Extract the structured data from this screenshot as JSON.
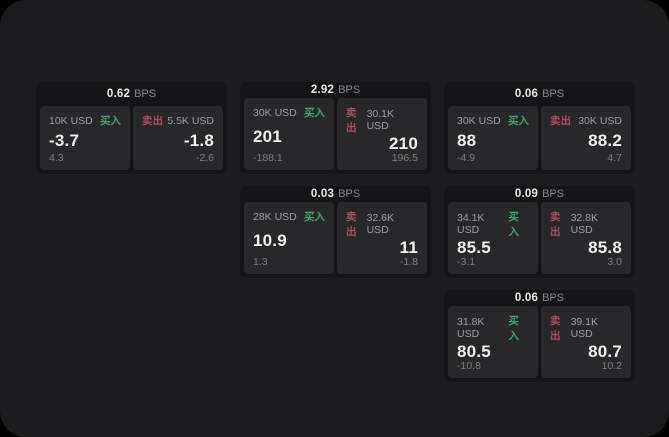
{
  "labels": {
    "bps_unit": "BPS",
    "buy": "买入",
    "sell": "卖出"
  },
  "colors": {
    "background": "#000000",
    "panel_bg": "#1c1c1e",
    "card_bg": "#151517",
    "tile_bg": "#28282b",
    "buy": "#3fa468",
    "sell": "#b04b5c"
  },
  "cards": [
    {
      "bps": "0.62",
      "grid": {
        "row": 1,
        "col": 1
      },
      "buy": {
        "size": "10K USD",
        "price": "-3.7",
        "delta": "4.3"
      },
      "sell": {
        "size": "5.5K USD",
        "price": "-1.8",
        "delta": "-2.6"
      }
    },
    {
      "bps": "2.92",
      "grid": {
        "row": 1,
        "col": 2
      },
      "buy": {
        "size": "30K USD",
        "price": "201",
        "delta": "-188.1"
      },
      "sell": {
        "size": "30.1K USD",
        "price": "210",
        "delta": "196.5"
      }
    },
    {
      "bps": "0.06",
      "grid": {
        "row": 1,
        "col": 3
      },
      "buy": {
        "size": "30K USD",
        "price": "88",
        "delta": "-4.9"
      },
      "sell": {
        "size": "30K USD",
        "price": "88.2",
        "delta": "4.7"
      }
    },
    {
      "bps": "0.03",
      "grid": {
        "row": 2,
        "col": 2
      },
      "buy": {
        "size": "28K USD",
        "price": "10.9",
        "delta": "1.3"
      },
      "sell": {
        "size": "32.6K USD",
        "price": "11",
        "delta": "-1.8"
      }
    },
    {
      "bps": "0.09",
      "grid": {
        "row": 2,
        "col": 3
      },
      "buy": {
        "size": "34.1K USD",
        "price": "85.5",
        "delta": "-3.1"
      },
      "sell": {
        "size": "32.8K USD",
        "price": "85.8",
        "delta": "3.0"
      }
    },
    {
      "bps": "0.06",
      "grid": {
        "row": 3,
        "col": 3
      },
      "buy": {
        "size": "31.8K USD",
        "price": "80.5",
        "delta": "-10.8"
      },
      "sell": {
        "size": "39.1K USD",
        "price": "80.7",
        "delta": "10.2"
      }
    }
  ]
}
